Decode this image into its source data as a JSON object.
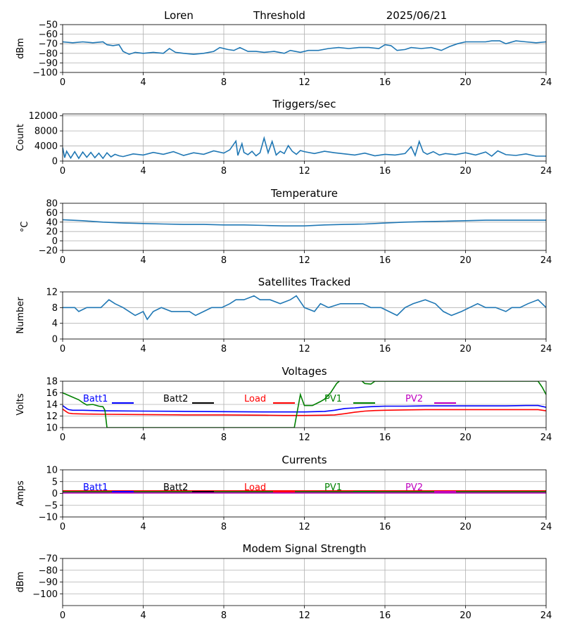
{
  "header": {
    "station": "Loren",
    "mode": "Threshold",
    "date": "2025/06/21"
  },
  "chart_data": [
    {
      "id": "threshold",
      "type": "line",
      "title": "",
      "xlabel": "",
      "ylabel": "dBm",
      "xlim": [
        0,
        24
      ],
      "ylim": [
        -100,
        -50
      ],
      "xticks": [
        0,
        4,
        8,
        12,
        16,
        20,
        24
      ],
      "yticks": [
        -100,
        -90,
        -80,
        -70,
        -60,
        -50
      ],
      "grid": true,
      "series": [
        {
          "color": "#1f77b4",
          "x": [
            0,
            0.5,
            1,
            1.5,
            2,
            2.2,
            2.5,
            2.8,
            3,
            3.3,
            3.6,
            4,
            4.5,
            5,
            5.3,
            5.6,
            6,
            6.5,
            7,
            7.5,
            7.8,
            8.2,
            8.5,
            8.8,
            9.2,
            9.6,
            10,
            10.5,
            11,
            11.3,
            11.8,
            12.2,
            12.7,
            13.2,
            13.7,
            14.2,
            14.7,
            15.2,
            15.7,
            16,
            16.3,
            16.6,
            17,
            17.3,
            17.8,
            18.3,
            18.8,
            19.2,
            19.6,
            20,
            20.5,
            21,
            21.3,
            21.7,
            22,
            22.5,
            23,
            23.5,
            24
          ],
          "y": [
            -68,
            -69,
            -68,
            -69,
            -68,
            -71,
            -72,
            -71,
            -78,
            -81,
            -79,
            -80,
            -79,
            -80,
            -75,
            -79,
            -80,
            -81,
            -80,
            -78,
            -74,
            -76,
            -77,
            -74,
            -78,
            -78,
            -79,
            -78,
            -80,
            -77,
            -79,
            -77,
            -77,
            -75,
            -74,
            -75,
            -74,
            -74,
            -75,
            -71,
            -72,
            -77,
            -76,
            -74,
            -75,
            -74,
            -77,
            -73,
            -70,
            -68,
            -68,
            -68,
            -67,
            -67,
            -70,
            -67,
            -68,
            -69,
            -68
          ]
        }
      ]
    },
    {
      "id": "triggers",
      "type": "line",
      "title": "Triggers/sec",
      "xlabel": "",
      "ylabel": "Count",
      "xlim": [
        0,
        24
      ],
      "ylim": [
        0,
        12500
      ],
      "xticks": [
        0,
        4,
        8,
        12,
        16,
        20,
        24
      ],
      "yticks": [
        0,
        4000,
        8000,
        12000
      ],
      "grid": true,
      "series": [
        {
          "color": "#1f77b4",
          "x": [
            0,
            0.1,
            0.2,
            0.4,
            0.6,
            0.8,
            1.0,
            1.2,
            1.4,
            1.6,
            1.8,
            2.0,
            2.2,
            2.4,
            2.6,
            2.8,
            3.0,
            3.5,
            4,
            4.5,
            5,
            5.5,
            6,
            6.5,
            7,
            7.5,
            8,
            8.3,
            8.6,
            8.7,
            8.9,
            9.0,
            9.2,
            9.4,
            9.6,
            9.8,
            10,
            10.2,
            10.4,
            10.6,
            10.8,
            11,
            11.2,
            11.4,
            11.6,
            11.8,
            12,
            12.5,
            13,
            13.5,
            14,
            14.5,
            15,
            15.5,
            16,
            16.5,
            17,
            17.3,
            17.5,
            17.7,
            17.9,
            18.1,
            18.4,
            18.7,
            19,
            19.5,
            20,
            20.5,
            21,
            21.3,
            21.6,
            22,
            22.5,
            23,
            23.5,
            24
          ],
          "y": [
            3600,
            900,
            2600,
            800,
            2500,
            700,
            2400,
            1000,
            2300,
            900,
            2100,
            700,
            2200,
            1100,
            1800,
            1400,
            1200,
            1900,
            1600,
            2300,
            1800,
            2500,
            1500,
            2200,
            1800,
            2700,
            2100,
            3000,
            5300,
            1500,
            4600,
            2300,
            1700,
            2600,
            1400,
            2200,
            6100,
            2200,
            5200,
            1600,
            2600,
            2000,
            4100,
            2600,
            1800,
            2800,
            2500,
            2000,
            2600,
            2200,
            1900,
            1600,
            2100,
            1400,
            1800,
            1600,
            2000,
            3800,
            1500,
            5200,
            2400,
            1800,
            2500,
            1600,
            2000,
            1700,
            2200,
            1600,
            2400,
            1300,
            2700,
            1700,
            1500,
            1900,
            1300,
            1300
          ]
        }
      ]
    },
    {
      "id": "temperature",
      "type": "line",
      "title": "Temperature",
      "xlabel": "",
      "ylabel": "°C",
      "xlim": [
        0,
        24
      ],
      "ylim": [
        -20,
        80
      ],
      "xticks": [
        0,
        4,
        8,
        12,
        16,
        20,
        24
      ],
      "yticks": [
        -20,
        0,
        20,
        40,
        60,
        80
      ],
      "grid": true,
      "series": [
        {
          "color": "#1f77b4",
          "x": [
            0,
            1,
            2,
            3,
            4,
            5,
            6,
            7,
            8,
            9,
            10,
            11,
            12,
            13,
            14,
            15,
            16,
            17,
            18,
            19,
            20,
            21,
            22,
            23,
            24
          ],
          "y": [
            45,
            43,
            40,
            38,
            37,
            36,
            35,
            35,
            34,
            34,
            33,
            32,
            32,
            34,
            35,
            36,
            38,
            40,
            41,
            42,
            43,
            44,
            44,
            44,
            44
          ]
        }
      ]
    },
    {
      "id": "satellites",
      "type": "line",
      "title": "Satellites Tracked",
      "xlabel": "",
      "ylabel": "Number",
      "xlim": [
        0,
        24
      ],
      "ylim": [
        0,
        12
      ],
      "xticks": [
        0,
        4,
        8,
        12,
        16,
        20,
        24
      ],
      "yticks": [
        0,
        4,
        8,
        12
      ],
      "grid": true,
      "series": [
        {
          "color": "#1f77b4",
          "x": [
            0,
            0.6,
            0.8,
            1.2,
            1.9,
            2.3,
            2.6,
            3.0,
            3.3,
            3.6,
            4.0,
            4.2,
            4.5,
            4.9,
            5.4,
            5.8,
            6.3,
            6.6,
            7.0,
            7.4,
            7.9,
            8.3,
            8.6,
            9.0,
            9.5,
            9.8,
            10.3,
            10.8,
            11.3,
            11.6,
            12.0,
            12.5,
            12.8,
            13.2,
            13.8,
            14.5,
            14.9,
            15.3,
            15.8,
            16.2,
            16.6,
            17.0,
            17.4,
            18.0,
            18.5,
            18.9,
            19.3,
            19.8,
            20.2,
            20.6,
            21.0,
            21.5,
            22.0,
            22.3,
            22.7,
            23.1,
            23.6,
            24
          ],
          "y": [
            8,
            8,
            7,
            8,
            8,
            10,
            9,
            8,
            7,
            6,
            7,
            5,
            7,
            8,
            7,
            7,
            7,
            6,
            7,
            8,
            8,
            9,
            10,
            10,
            11,
            10,
            10,
            9,
            10,
            11,
            8,
            7,
            9,
            8,
            9,
            9,
            9,
            8,
            8,
            7,
            6,
            8,
            9,
            10,
            9,
            7,
            6,
            7,
            8,
            9,
            8,
            8,
            7,
            8,
            8,
            9,
            10,
            8
          ]
        }
      ]
    },
    {
      "id": "voltages",
      "type": "line",
      "title": "Voltages",
      "xlabel": "",
      "ylabel": "Volts",
      "xlim": [
        0,
        24
      ],
      "ylim": [
        10,
        18
      ],
      "xticks": [
        0,
        4,
        8,
        12,
        16,
        20,
        24
      ],
      "yticks": [
        10,
        12,
        14,
        16,
        18
      ],
      "grid": true,
      "legend": "inline-top",
      "series": [
        {
          "name": "Batt1",
          "color": "#0000ff",
          "x": [
            0,
            0.2,
            0.3,
            0.5,
            1,
            2,
            4,
            6,
            8,
            10,
            12,
            13,
            13.5,
            14,
            14.5,
            15,
            15.5,
            16,
            17,
            18,
            20,
            22,
            23,
            23.6,
            24
          ],
          "y": [
            13.8,
            13.3,
            13.1,
            13.0,
            13.0,
            12.9,
            12.85,
            12.8,
            12.75,
            12.7,
            12.7,
            12.8,
            13.0,
            13.3,
            13.4,
            13.55,
            13.65,
            13.7,
            13.7,
            13.75,
            13.75,
            13.75,
            13.8,
            13.8,
            13.5
          ]
        },
        {
          "name": "Batt2",
          "color": "#000000",
          "x": [],
          "y": []
        },
        {
          "name": "Load",
          "color": "#ff0000",
          "x": [
            0,
            0.2,
            0.3,
            0.5,
            1,
            2,
            4,
            6,
            8,
            10,
            11,
            12,
            13,
            13.5,
            14,
            14.5,
            15,
            15.5,
            16,
            17,
            18,
            20,
            22,
            23,
            23.6,
            24
          ],
          "y": [
            13.2,
            12.7,
            12.5,
            12.4,
            12.35,
            12.3,
            12.25,
            12.2,
            12.2,
            12.15,
            12.1,
            12.1,
            12.15,
            12.2,
            12.4,
            12.65,
            12.85,
            12.95,
            13.0,
            13.05,
            13.1,
            13.1,
            13.1,
            13.1,
            13.1,
            12.9
          ]
        },
        {
          "name": "PV1",
          "color": "#008000",
          "x": [
            0,
            0.4,
            0.8,
            1.0,
            1.2,
            1.5,
            1.8,
            2.0,
            2.1,
            2.2,
            11.5,
            11.8,
            12.0,
            12.4,
            12.8,
            13.0,
            13.3,
            13.6,
            13.9,
            14.2,
            14.5,
            14.7,
            15.0,
            15.3,
            15.5,
            23.6,
            23.8,
            24
          ],
          "y": [
            16.0,
            15.4,
            14.8,
            14.3,
            13.9,
            14.0,
            13.7,
            13.6,
            13.0,
            10.0,
            10.0,
            15.7,
            13.8,
            13.8,
            14.5,
            14.9,
            16.0,
            17.6,
            18.5,
            19.5,
            20.5,
            18.5,
            17.6,
            17.5,
            18.0,
            18.0,
            17.0,
            15.7
          ]
        },
        {
          "name": "PV2",
          "color": "#bf00bf",
          "x": [],
          "y": []
        }
      ]
    },
    {
      "id": "currents",
      "type": "line",
      "title": "Currents",
      "xlabel": "",
      "ylabel": "Amps",
      "xlim": [
        0,
        24
      ],
      "ylim": [
        -10,
        10
      ],
      "xticks": [
        0,
        4,
        8,
        12,
        16,
        20,
        24
      ],
      "yticks": [
        -10,
        -5,
        0,
        5,
        10
      ],
      "grid": true,
      "legend": "inline-top",
      "series": [
        {
          "name": "Batt1",
          "color": "#0000ff",
          "x": [
            0,
            24
          ],
          "y": [
            0.4,
            0.4
          ]
        },
        {
          "name": "Batt2",
          "color": "#000000",
          "x": [],
          "y": []
        },
        {
          "name": "Load",
          "color": "#ff0000",
          "x": [
            0,
            24
          ],
          "y": [
            1.1,
            1.1
          ]
        },
        {
          "name": "PV1",
          "color": "#008000",
          "x": [
            0,
            24
          ],
          "y": [
            0.7,
            0.7
          ]
        },
        {
          "name": "PV2",
          "color": "#bf00bf",
          "x": [
            0,
            24
          ],
          "y": [
            0.2,
            0.2
          ]
        }
      ]
    },
    {
      "id": "modem",
      "type": "line",
      "title": "Modem Signal Strength",
      "xlabel": "",
      "ylabel": "dBm",
      "xlim": [
        0,
        24
      ],
      "ylim": [
        -110,
        -70
      ],
      "xticks": [
        0,
        4,
        8,
        12,
        16,
        20,
        24
      ],
      "yticks": [
        -100,
        -90,
        -80,
        -70
      ],
      "grid": true,
      "series": []
    }
  ]
}
